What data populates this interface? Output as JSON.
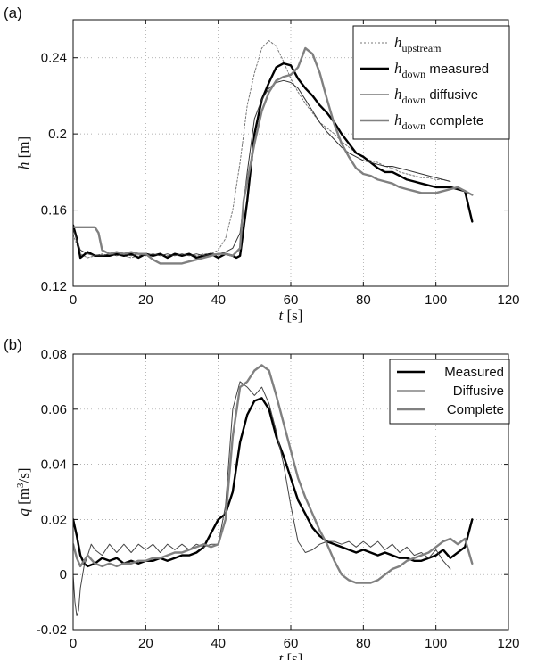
{
  "chart_data": [
    {
      "panel_label": "(a)",
      "type": "line",
      "xlabel": {
        "var": "t",
        "unit": " [s]"
      },
      "ylabel": {
        "var": "h",
        "unit": " [m]"
      },
      "xlim": [
        0,
        120
      ],
      "ylim": [
        0.12,
        0.26
      ],
      "xticks": [
        0,
        20,
        40,
        60,
        80,
        100,
        120
      ],
      "yticks": [
        0.12,
        0.16,
        0.2,
        0.24
      ],
      "ytick_labels": [
        "0.12",
        "0.16",
        "0.2",
        "0.24"
      ],
      "grid": "dotted",
      "legend_position": "top-right",
      "series": [
        {
          "legend": {
            "var": "h",
            "sub": "upstream",
            "text": ""
          },
          "color": "#777777",
          "style": "dotted",
          "x": [
            0,
            2,
            4,
            6,
            8,
            10,
            12,
            14,
            16,
            18,
            20,
            22,
            24,
            26,
            28,
            30,
            32,
            34,
            36,
            38,
            40,
            42,
            44,
            46,
            48,
            50,
            52,
            54,
            56,
            58,
            60,
            62,
            64,
            66,
            68,
            70,
            72,
            74,
            76,
            78,
            80,
            82,
            84,
            86,
            88,
            90,
            92,
            94,
            96,
            98,
            100,
            102,
            104
          ],
          "y": [
            0.147,
            0.137,
            0.135,
            0.136,
            0.137,
            0.136,
            0.137,
            0.136,
            0.135,
            0.136,
            0.137,
            0.136,
            0.137,
            0.136,
            0.137,
            0.136,
            0.137,
            0.136,
            0.137,
            0.137,
            0.139,
            0.145,
            0.16,
            0.185,
            0.215,
            0.232,
            0.245,
            0.249,
            0.246,
            0.238,
            0.229,
            0.222,
            0.216,
            0.211,
            0.206,
            0.203,
            0.2,
            0.196,
            0.193,
            0.19,
            0.188,
            0.186,
            0.185,
            0.183,
            0.182,
            0.18,
            0.179,
            0.178,
            0.177,
            0.177,
            0.176,
            0.176,
            0.175
          ]
        },
        {
          "legend": {
            "var": "h",
            "sub": "down",
            "text": " measured"
          },
          "color": "#000000",
          "style": "solid-thick",
          "x": [
            0,
            1,
            2,
            4,
            6,
            8,
            10,
            12,
            14,
            16,
            18,
            20,
            22,
            24,
            26,
            28,
            30,
            32,
            34,
            36,
            38,
            40,
            42,
            44,
            45,
            46,
            48,
            50,
            52,
            54,
            56,
            58,
            60,
            62,
            64,
            66,
            68,
            70,
            72,
            74,
            76,
            78,
            80,
            82,
            84,
            86,
            88,
            90,
            92,
            94,
            96,
            98,
            100,
            102,
            104,
            106,
            108,
            110
          ],
          "y": [
            0.152,
            0.145,
            0.135,
            0.138,
            0.136,
            0.136,
            0.136,
            0.137,
            0.136,
            0.137,
            0.135,
            0.137,
            0.136,
            0.137,
            0.135,
            0.137,
            0.136,
            0.137,
            0.135,
            0.136,
            0.137,
            0.135,
            0.137,
            0.136,
            0.135,
            0.136,
            0.165,
            0.2,
            0.218,
            0.227,
            0.235,
            0.237,
            0.236,
            0.229,
            0.224,
            0.22,
            0.215,
            0.211,
            0.206,
            0.2,
            0.195,
            0.19,
            0.188,
            0.185,
            0.182,
            0.18,
            0.18,
            0.178,
            0.176,
            0.175,
            0.174,
            0.173,
            0.172,
            0.172,
            0.172,
            0.171,
            0.17,
            0.154
          ]
        },
        {
          "legend": {
            "var": "h",
            "sub": "down",
            "text": " diffusive"
          },
          "color": "#333333",
          "style": "thin",
          "x": [
            0,
            2,
            4,
            6,
            8,
            10,
            12,
            14,
            16,
            18,
            20,
            22,
            24,
            26,
            28,
            30,
            32,
            34,
            36,
            38,
            40,
            42,
            44,
            46,
            48,
            50,
            52,
            54,
            56,
            58,
            60,
            62,
            64,
            66,
            68,
            70,
            72,
            74,
            76,
            78,
            80,
            82,
            84,
            86,
            88,
            90,
            92,
            94,
            96,
            98,
            100,
            102,
            104
          ],
          "y": [
            0.15,
            0.139,
            0.137,
            0.136,
            0.136,
            0.137,
            0.136,
            0.137,
            0.136,
            0.137,
            0.136,
            0.137,
            0.136,
            0.137,
            0.136,
            0.137,
            0.136,
            0.137,
            0.136,
            0.137,
            0.137,
            0.138,
            0.14,
            0.148,
            0.18,
            0.208,
            0.218,
            0.224,
            0.227,
            0.228,
            0.227,
            0.224,
            0.218,
            0.212,
            0.206,
            0.201,
            0.197,
            0.193,
            0.19,
            0.188,
            0.186,
            0.185,
            0.184,
            0.183,
            0.183,
            0.182,
            0.181,
            0.18,
            0.179,
            0.178,
            0.177,
            0.176,
            0.175
          ]
        },
        {
          "legend": {
            "var": "h",
            "sub": "down",
            "text": " complete"
          },
          "color": "#808080",
          "style": "solid-thick",
          "x": [
            0,
            2,
            4,
            6,
            7,
            8,
            10,
            12,
            14,
            16,
            18,
            20,
            22,
            24,
            26,
            28,
            30,
            32,
            34,
            36,
            38,
            40,
            42,
            44,
            46,
            47,
            48,
            50,
            52,
            54,
            56,
            58,
            60,
            62,
            64,
            66,
            68,
            70,
            72,
            74,
            76,
            78,
            80,
            82,
            84,
            86,
            88,
            90,
            92,
            94,
            96,
            98,
            100,
            102,
            104,
            106,
            108,
            110
          ],
          "y": [
            0.151,
            0.151,
            0.151,
            0.151,
            0.148,
            0.139,
            0.137,
            0.138,
            0.137,
            0.138,
            0.137,
            0.137,
            0.134,
            0.132,
            0.132,
            0.132,
            0.132,
            0.133,
            0.134,
            0.135,
            0.136,
            0.137,
            0.137,
            0.136,
            0.14,
            0.165,
            0.175,
            0.195,
            0.212,
            0.222,
            0.228,
            0.23,
            0.231,
            0.235,
            0.245,
            0.242,
            0.232,
            0.218,
            0.205,
            0.195,
            0.188,
            0.182,
            0.179,
            0.178,
            0.176,
            0.175,
            0.174,
            0.172,
            0.171,
            0.17,
            0.169,
            0.169,
            0.169,
            0.17,
            0.171,
            0.172,
            0.17,
            0.168
          ]
        }
      ]
    },
    {
      "panel_label": "(b)",
      "type": "line",
      "xlabel": {
        "var": "t",
        "unit": " [s]"
      },
      "ylabel": {
        "var": "q",
        "unit_pre": " [m",
        "unit_sup": "3",
        "unit_post": "/s]"
      },
      "xlim": [
        0,
        120
      ],
      "ylim": [
        -0.02,
        0.08
      ],
      "xticks": [
        0,
        20,
        40,
        60,
        80,
        100,
        120
      ],
      "yticks": [
        -0.02,
        0,
        0.02,
        0.04,
        0.06,
        0.08
      ],
      "ytick_labels": [
        "-0.02",
        "0",
        "0.02",
        "0.04",
        "0.06",
        "0.08"
      ],
      "grid": "dotted",
      "legend_position": "top-right",
      "series": [
        {
          "name": "Measured",
          "color": "#000000",
          "style": "solid-thick",
          "x": [
            0,
            1,
            2,
            3,
            4,
            6,
            8,
            10,
            12,
            14,
            16,
            18,
            20,
            22,
            24,
            26,
            28,
            30,
            32,
            34,
            36,
            38,
            40,
            42,
            44,
            46,
            48,
            50,
            52,
            54,
            56,
            58,
            60,
            62,
            64,
            66,
            68,
            70,
            72,
            74,
            76,
            78,
            80,
            82,
            84,
            86,
            88,
            90,
            92,
            94,
            96,
            98,
            100,
            102,
            104,
            106,
            108,
            110
          ],
          "y": [
            0.02,
            0.014,
            0.007,
            0.004,
            0.003,
            0.004,
            0.006,
            0.005,
            0.006,
            0.004,
            0.005,
            0.004,
            0.005,
            0.005,
            0.006,
            0.005,
            0.006,
            0.007,
            0.007,
            0.008,
            0.01,
            0.015,
            0.02,
            0.022,
            0.03,
            0.048,
            0.058,
            0.063,
            0.064,
            0.06,
            0.05,
            0.043,
            0.035,
            0.027,
            0.022,
            0.017,
            0.014,
            0.012,
            0.011,
            0.01,
            0.009,
            0.008,
            0.009,
            0.008,
            0.007,
            0.008,
            0.007,
            0.006,
            0.006,
            0.005,
            0.005,
            0.006,
            0.007,
            0.009,
            0.006,
            0.008,
            0.01,
            0.02
          ]
        },
        {
          "name": "Diffusive",
          "color": "#444444",
          "style": "thin",
          "x": [
            0,
            0.5,
            1,
            1.5,
            2,
            3,
            4,
            5,
            6,
            8,
            10,
            12,
            14,
            16,
            18,
            20,
            22,
            24,
            26,
            28,
            30,
            32,
            34,
            36,
            38,
            40,
            42,
            44,
            46,
            48,
            50,
            52,
            54,
            56,
            58,
            60,
            62,
            64,
            66,
            68,
            70,
            72,
            74,
            76,
            78,
            80,
            82,
            84,
            86,
            88,
            90,
            92,
            94,
            96,
            98,
            100,
            102,
            104
          ],
          "y": [
            0.0,
            -0.01,
            -0.015,
            -0.013,
            -0.005,
            0.003,
            0.007,
            0.011,
            0.009,
            0.007,
            0.011,
            0.008,
            0.011,
            0.008,
            0.011,
            0.009,
            0.011,
            0.008,
            0.011,
            0.009,
            0.011,
            0.009,
            0.011,
            0.01,
            0.011,
            0.011,
            0.025,
            0.06,
            0.07,
            0.068,
            0.065,
            0.068,
            0.062,
            0.052,
            0.04,
            0.025,
            0.012,
            0.008,
            0.009,
            0.011,
            0.012,
            0.012,
            0.011,
            0.012,
            0.01,
            0.012,
            0.01,
            0.012,
            0.009,
            0.011,
            0.008,
            0.01,
            0.007,
            0.008,
            0.006,
            0.009,
            0.005,
            0.002
          ]
        },
        {
          "name": "Complete",
          "color": "#808080",
          "style": "solid-thick",
          "x": [
            0,
            1,
            2,
            4,
            6,
            8,
            10,
            12,
            14,
            16,
            18,
            20,
            22,
            24,
            26,
            28,
            30,
            32,
            34,
            36,
            38,
            40,
            42,
            44,
            46,
            48,
            50,
            52,
            54,
            56,
            58,
            60,
            62,
            64,
            66,
            68,
            70,
            72,
            74,
            76,
            78,
            80,
            82,
            84,
            86,
            88,
            90,
            92,
            94,
            96,
            98,
            100,
            102,
            104,
            106,
            108,
            110
          ],
          "y": [
            0.011,
            0.006,
            0.003,
            0.007,
            0.004,
            0.003,
            0.004,
            0.003,
            0.004,
            0.004,
            0.005,
            0.005,
            0.006,
            0.006,
            0.007,
            0.008,
            0.008,
            0.009,
            0.01,
            0.011,
            0.01,
            0.011,
            0.02,
            0.05,
            0.068,
            0.07,
            0.074,
            0.076,
            0.074,
            0.065,
            0.055,
            0.045,
            0.035,
            0.028,
            0.022,
            0.016,
            0.011,
            0.005,
            0.0,
            -0.002,
            -0.003,
            -0.003,
            -0.003,
            -0.002,
            0.0,
            0.002,
            0.003,
            0.005,
            0.006,
            0.007,
            0.008,
            0.01,
            0.012,
            0.013,
            0.011,
            0.013,
            0.004
          ]
        }
      ]
    }
  ]
}
